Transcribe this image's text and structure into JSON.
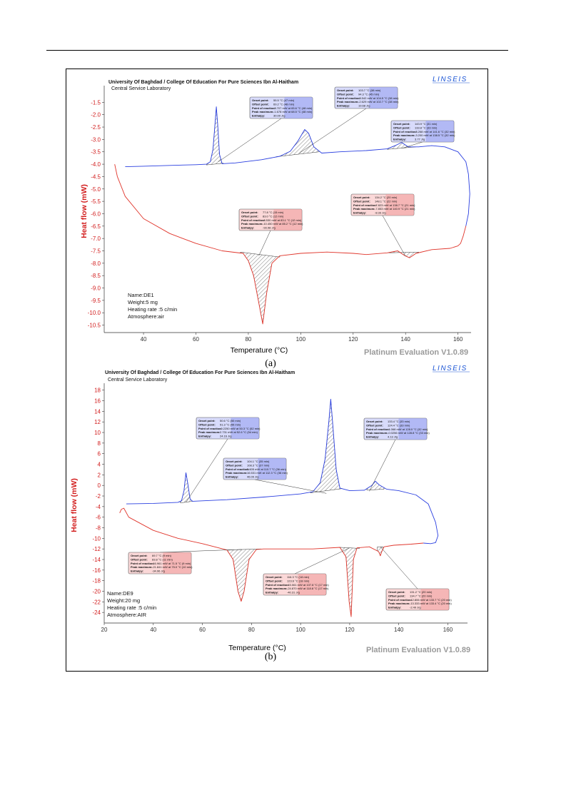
{
  "chart_data": [
    {
      "id": "a",
      "type": "line",
      "caption": "(a)",
      "header_line1": "University Of Baghdad / College Of Education For Pure Sciences Ibn Al-Haitham",
      "header_line2": "Central Service Laboratory",
      "brand": "LINSEIS",
      "software": "Platinum Evaluation V1.0.89",
      "xlabel": "Temperature (°C)",
      "ylabel": "Heat flow (mW)",
      "xlim": [
        25,
        165
      ],
      "ylim": [
        -10.8,
        -1.0
      ],
      "x_ticks": [
        40,
        60,
        80,
        100,
        120,
        140,
        160
      ],
      "y_ticks": [
        -10.5,
        -10.0,
        -9.5,
        -9.0,
        -8.5,
        -8.0,
        -7.5,
        -7.0,
        -6.5,
        -6.0,
        -5.5,
        -5.0,
        -4.5,
        -4.0,
        -3.5,
        -3.0,
        -2.5,
        -2.0,
        -1.5
      ],
      "sample_info": [
        "Name:DE1",
        "Weight:5 mg",
        "Heating rate :5 c/min",
        "Atmosphere:air"
      ],
      "series": [
        {
          "color": "#2a3fe0",
          "points": [
            [
              33,
              -4.1
            ],
            [
              40,
              -4.08
            ],
            [
              50,
              -4.05
            ],
            [
              60,
              -4.02
            ],
            [
              64,
              -4.0
            ],
            [
              65.5,
              -3.9
            ],
            [
              66.5,
              -3.4
            ],
            [
              67.2,
              -2.5
            ],
            [
              67.8,
              -1.68
            ],
            [
              68.3,
              -2.4
            ],
            [
              69,
              -3.6
            ],
            [
              70,
              -3.98
            ],
            [
              75,
              -3.95
            ],
            [
              85,
              -3.82
            ],
            [
              92,
              -3.68
            ],
            [
              96,
              -3.48
            ],
            [
              99,
              -3.05
            ],
            [
              101.5,
              -2.6
            ],
            [
              103,
              -2.75
            ],
            [
              105,
              -3.3
            ],
            [
              108,
              -3.55
            ],
            [
              115,
              -3.5
            ],
            [
              125,
              -3.45
            ],
            [
              133,
              -3.38
            ],
            [
              136,
              -3.25
            ],
            [
              138.5,
              -3.12
            ],
            [
              141,
              -3.3
            ],
            [
              145,
              -3.3
            ],
            [
              150,
              -3.25
            ],
            [
              155,
              -3.3
            ],
            [
              160,
              -3.5
            ],
            [
              163,
              -3.9
            ],
            [
              164,
              -4.4
            ],
            [
              164.5,
              -5.2
            ],
            [
              164,
              -6.0
            ],
            [
              163,
              -6.5
            ]
          ]
        },
        {
          "color": "#e0352b",
          "points": [
            [
              163,
              -6.5
            ],
            [
              162,
              -6.9
            ],
            [
              161,
              -7.2
            ],
            [
              160,
              -7.3
            ],
            [
              157,
              -7.4
            ],
            [
              150,
              -7.45
            ],
            [
              144,
              -7.6
            ],
            [
              141.5,
              -7.78
            ],
            [
              139.5,
              -7.68
            ],
            [
              137,
              -7.5
            ],
            [
              133,
              -7.58
            ],
            [
              125,
              -7.65
            ],
            [
              120,
              -7.6
            ],
            [
              110,
              -7.55
            ],
            [
              100,
              -7.6
            ],
            [
              92,
              -7.7
            ],
            [
              89,
              -8.0
            ],
            [
              87,
              -9.2
            ],
            [
              85.5,
              -10.45
            ],
            [
              84,
              -9.6
            ],
            [
              82,
              -8.5
            ],
            [
              80,
              -7.9
            ],
            [
              78,
              -7.6
            ],
            [
              70,
              -7.5
            ],
            [
              60,
              -7.2
            ],
            [
              50,
              -6.8
            ],
            [
              40,
              -6.2
            ],
            [
              33,
              -5.3
            ],
            [
              30,
              -4.5
            ],
            [
              29,
              -4.0
            ]
          ]
        }
      ],
      "annotations": [
        {
          "color": "blue",
          "lines": [
            [
              "Onset point:",
              "55.5 °C (47 min)"
            ],
            [
              "Offset point:",
              "69.2 °C (48 min)"
            ],
            [
              "Point of reaction:",
              "-3.707 mW at 65.6 °C (48 min)"
            ],
            [
              "Peak maximum:",
              "-1.678 mW at 68.5 °C (48 min)"
            ],
            [
              "Enthalpy:",
              "30.00 J/g"
            ]
          ]
        },
        {
          "color": "blue",
          "lines": [
            [
              "Onset point:",
              "103.7 °C (38 min)"
            ],
            [
              "Offset point:",
              "94.3 °C (45 min)"
            ],
            [
              "Point of reaction:",
              "-3.542 mW at 104.5 °C (38 min)"
            ],
            [
              "Peak maximum:",
              "-2.629 mW at 102.7 °C (38 min)"
            ],
            [
              "Enthalpy:",
              "19.68 J/g"
            ]
          ]
        },
        {
          "color": "blue",
          "lines": [
            [
              "Onset point:",
              "143.9 °C (31 min)"
            ],
            [
              "Offset point:",
              "133.8 °C (33 min)"
            ],
            [
              "Point of reaction:",
              "-3.268 mW at 141.6 °C (32 min)"
            ],
            [
              "Peak maximum:",
              "-3.200 mW at 138.5 °C (32 min)"
            ],
            [
              "Enthalpy:",
              "3.77 J/g"
            ]
          ]
        },
        {
          "color": "red",
          "lines": [
            [
              "Onset point:",
              "77.8 °C (15 min)"
            ],
            [
              "Offset point:",
              "83.0 °C (12 min)"
            ],
            [
              "Point of reaction:",
              "-8.530 mW at 83.1 °C (12 min)"
            ],
            [
              "Peak maximum:",
              "-10.450 mW at 85.2 °C (12 min)"
            ],
            [
              "Enthalpy:",
              "-93.98 J/g"
            ]
          ]
        },
        {
          "color": "red",
          "lines": [
            [
              "Onset point:",
              "134.2 °C (20 min)"
            ],
            [
              "Offset point:",
              "148.1 °C (22 min)"
            ],
            [
              "Point of reaction:",
              "-7.823 mW at 138.7 °C (21 min)"
            ],
            [
              "Peak maximum:",
              "-7.853 mW at 140.9 °C (21 min)"
            ],
            [
              "Enthalpy:",
              "-8.33 J/g"
            ]
          ]
        }
      ]
    },
    {
      "id": "b",
      "type": "line",
      "caption": "(b)",
      "header_line1": "University Of Baghdad / College Of Education For Pure Sciences Ibn Al-Haitham",
      "header_line2": "Central Service Laboratory",
      "brand": "LINSEIS",
      "software": "Platinum Evaluation V1.0.89",
      "xlabel": "Temperature (°C)",
      "ylabel": "Heat flow (mW)",
      "xlim": [
        20,
        168
      ],
      "ylim": [
        -26,
        18.5
      ],
      "x_ticks": [
        20,
        40,
        60,
        80,
        100,
        120,
        140,
        160
      ],
      "y_ticks": [
        18,
        16,
        14,
        12,
        10,
        8,
        6,
        4,
        2,
        0,
        -2,
        -4,
        -6,
        -8,
        -10,
        -12,
        -14,
        -16,
        -18,
        -20,
        -22,
        -24
      ],
      "sample_info": [
        "Name:DE9",
        "Weight:20 mg",
        "Heating rate :5 c/min",
        "Atmosphere:AIR"
      ],
      "series": [
        {
          "color": "#2a3fe0",
          "points": [
            [
              29,
              -3.5
            ],
            [
              40,
              -3.4
            ],
            [
              50,
              -3.2
            ],
            [
              51.5,
              -2.9
            ],
            [
              52.5,
              -1.0
            ],
            [
              53.3,
              2.4
            ],
            [
              54,
              0.5
            ],
            [
              55,
              -2.6
            ],
            [
              56,
              -3.0
            ],
            [
              70,
              -2.7
            ],
            [
              85,
              -2.2
            ],
            [
              100,
              -1.6
            ],
            [
              105,
              -1.2
            ],
            [
              108,
              0.5
            ],
            [
              110,
              5.0
            ],
            [
              111.5,
              12.0
            ],
            [
              112.3,
              16.3
            ],
            [
              113.2,
              11.0
            ],
            [
              114.5,
              3.0
            ],
            [
              116,
              -0.5
            ],
            [
              120,
              -1.0
            ],
            [
              126,
              -0.9
            ],
            [
              129,
              0.0
            ],
            [
              130.5,
              0.8
            ],
            [
              132,
              0.1
            ],
            [
              135,
              -0.7
            ],
            [
              140,
              -1.0
            ],
            [
              147,
              -1.8
            ],
            [
              152,
              -3.5
            ],
            [
              155,
              -7.0
            ],
            [
              156,
              -9.5
            ],
            [
              155,
              -10.8
            ],
            [
              153,
              -11.0
            ],
            [
              150,
              -10.9
            ]
          ]
        },
        {
          "color": "#e0352b",
          "points": [
            [
              150,
              -10.9
            ],
            [
              145,
              -11.1
            ],
            [
              138,
              -11.3
            ],
            [
              134,
              -11.6
            ],
            [
              133,
              -12.6
            ],
            [
              132.5,
              -13.3
            ],
            [
              131.8,
              -12.5
            ],
            [
              128,
              -11.6
            ],
            [
              123,
              -11.8
            ],
            [
              121.5,
              -14.0
            ],
            [
              120.6,
              -24.8
            ],
            [
              119.8,
              -22.0
            ],
            [
              118.5,
              -13.5
            ],
            [
              116,
              -11.7
            ],
            [
              105,
              -12.0
            ],
            [
              95,
              -12.0
            ],
            [
              85,
              -12.0
            ],
            [
              82,
              -12.1
            ],
            [
              79,
              -14.0
            ],
            [
              77,
              -20.0
            ],
            [
              75.8,
              -21.9
            ],
            [
              74.5,
              -20.0
            ],
            [
              72.5,
              -14.0
            ],
            [
              70,
              -12.2
            ],
            [
              60,
              -11.0
            ],
            [
              50,
              -10.0
            ],
            [
              40,
              -8.5
            ],
            [
              30,
              -6.0
            ],
            [
              28,
              -4.3
            ],
            [
              27,
              -4.5
            ],
            [
              26.3,
              -5.2
            ]
          ]
        }
      ],
      "annotations": [
        {
          "color": "blue",
          "lines": [
            [
              "Onset point:",
              "50.6 °C (50 min)"
            ],
            [
              "Offset point:",
              "51.3 °C (55 min)"
            ],
            [
              "Point of reaction:",
              "-0.2250 mW at 50.3 °C (52 min)"
            ],
            [
              "Peak maximum:",
              "2.731 mW at 52.6 °C (54 min)"
            ],
            [
              "Enthalpy:",
              "24.16 J/g"
            ]
          ]
        },
        {
          "color": "blue",
          "lines": [
            [
              "Onset point:",
              "104.1 °C (35 min)"
            ],
            [
              "Offset point:",
              "108.3 °C (37 min)"
            ],
            [
              "Point of reaction:",
              "5.605 mW at 110.7 °C (36 min)"
            ],
            [
              "Peak maximum:",
              "16.531 mW at 112.3 °C (36 min)"
            ],
            [
              "Enthalpy:",
              "46.09 J/g"
            ]
          ]
        },
        {
          "color": "blue",
          "lines": [
            [
              "Onset point:",
              "133.4 °C (33 min)"
            ],
            [
              "Offset point:",
              "124.4 °C (33 min)"
            ],
            [
              "Point of reaction:",
              "-1.068 mW at 128.0 °C (32 min)"
            ],
            [
              "Peak maximum:",
              "-0.0256 mW at 128.8 °C (33 min)"
            ],
            [
              "Enthalpy:",
              "4.13 J/g"
            ]
          ]
        },
        {
          "color": "red",
          "lines": [
            [
              "Onset point:",
              "69.7 °C (9 min)"
            ],
            [
              "Offset point:",
              "83.8 °C (11 min)"
            ],
            [
              "Point of reaction:",
              "-16.961 mW at 71.5 °C (9 min)"
            ],
            [
              "Peak maximum:",
              "-21.841 mW at 75.0 °C (10 min)"
            ],
            [
              "Enthalpy:",
              "-34.96 J/g"
            ]
          ]
        },
        {
          "color": "red",
          "lines": [
            [
              "Onset point:",
              "116.3 °C (18 min)"
            ],
            [
              "Offset point:",
              "123.6 °C (18 min)"
            ],
            [
              "Point of reaction:",
              "-15.061 mW at 107.8 °C (17 min)"
            ],
            [
              "Peak maximum:",
              "-24.870 mW at 118.8 °C (17 min)"
            ],
            [
              "Enthalpy:",
              "-40.31 J/g"
            ]
          ]
        },
        {
          "color": "red",
          "lines": [
            [
              "Onset point:",
              "131.2 °C (20 min)"
            ],
            [
              "Offset point:",
              "134.7 °C (20 min)"
            ],
            [
              "Point of reaction:",
              "-12.806 mW at 133.7 °C (20 min)"
            ],
            [
              "Peak maximum:",
              "-13.333 mW at 133.4 °C (20 min)"
            ],
            [
              "Enthalpy:",
              "-2.49 J/g"
            ]
          ]
        }
      ]
    }
  ]
}
